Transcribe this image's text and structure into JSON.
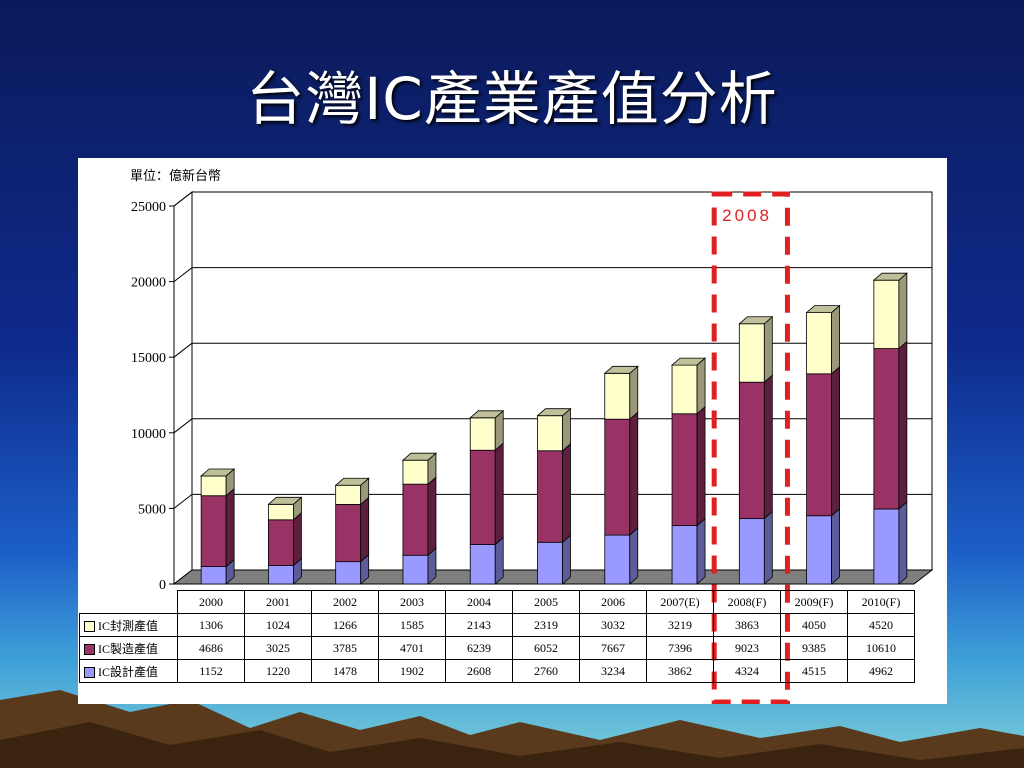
{
  "slide": {
    "title": "台灣IC產業產值分析"
  },
  "colors": {
    "design": "#9999ff",
    "manufacturing": "#993366",
    "packaging": "#ffffcc",
    "highlight": "#e02020"
  },
  "chart_data": {
    "type": "bar",
    "stacked": true,
    "unit_label": "單位：億新台幣",
    "categories": [
      "2000",
      "2001",
      "2002",
      "2003",
      "2004",
      "2005",
      "2006",
      "2007(E)",
      "2008(F)",
      "2009(F)",
      "2010(F)"
    ],
    "ylim": [
      0,
      25000
    ],
    "yticks": [
      "0",
      "5000",
      "10000",
      "15000",
      "20000",
      "25000"
    ],
    "grid": true,
    "highlight": {
      "category": "2008(F)",
      "label": "2008"
    },
    "series": [
      {
        "name": "IC設計產值",
        "color": "#9999ff",
        "values": [
          1152,
          1220,
          1478,
          1902,
          2608,
          2760,
          3234,
          3862,
          4324,
          4515,
          4962
        ]
      },
      {
        "name": "IC製造產值",
        "color": "#993366",
        "values": [
          4686,
          3025,
          3785,
          4701,
          6239,
          6052,
          7667,
          7396,
          9023,
          9385,
          10610
        ]
      },
      {
        "name": "IC封測產值",
        "color": "#ffffcc",
        "values": [
          1306,
          1024,
          1266,
          1585,
          2143,
          2319,
          3032,
          3219,
          3863,
          4050,
          4520
        ]
      }
    ]
  }
}
